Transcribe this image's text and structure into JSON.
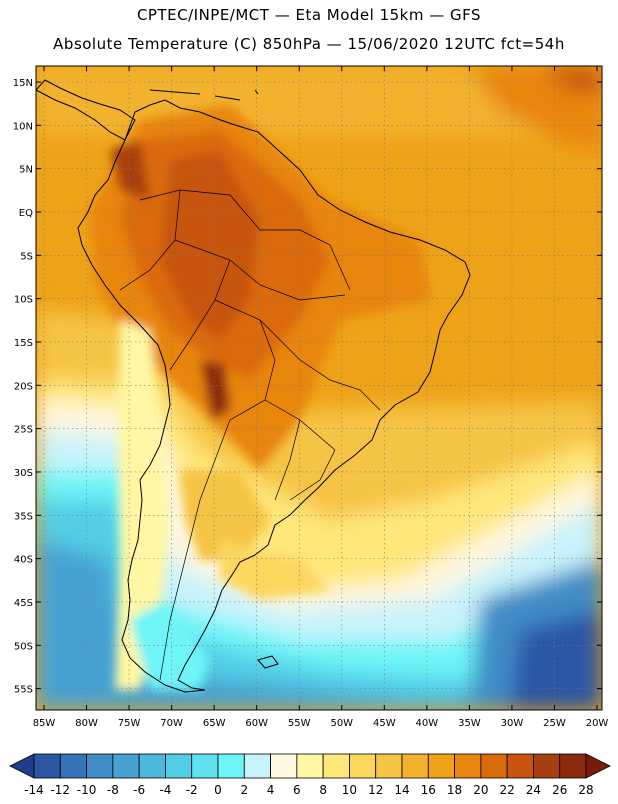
{
  "header": {
    "line1": "CPTEC/INPE/MCT —  Eta Model 15km — GFS",
    "line2": "Absolute Temperature (C) 850hPa — 15/06/2020 12UTC fct=54h"
  },
  "map": {
    "lat_labels": [
      "15N",
      "10N",
      "5N",
      "EQ",
      "5S",
      "10S",
      "15S",
      "20S",
      "25S",
      "30S",
      "35S",
      "40S",
      "45S",
      "50S",
      "55S"
    ],
    "lon_labels": [
      "85W",
      "80W",
      "75W",
      "70W",
      "65W",
      "60W",
      "55W",
      "50W",
      "45W",
      "40W",
      "35W",
      "30W",
      "25W",
      "20W"
    ]
  },
  "legend": {
    "labels": [
      "-14",
      "-12",
      "-10",
      "-8",
      "-6",
      "-4",
      "-2",
      "0",
      "2",
      "4",
      "6",
      "8",
      "10",
      "12",
      "14",
      "16",
      "18",
      "20",
      "22",
      "24",
      "26",
      "28"
    ],
    "colors": [
      "#1f3d8c",
      "#2c56a4",
      "#3574b8",
      "#3f8cc6",
      "#47a2d2",
      "#4cb8dd",
      "#52cde6",
      "#5fe1ef",
      "#6ef5f8",
      "#c9f3fb",
      "#fff7df",
      "#fff7a4",
      "#ffe77a",
      "#fcd75e",
      "#f6c445",
      "#f2b22e",
      "#eea218",
      "#e8850e",
      "#db6a0c",
      "#c85410",
      "#a83f10",
      "#8c2a0e",
      "#7a1a0a"
    ]
  }
}
